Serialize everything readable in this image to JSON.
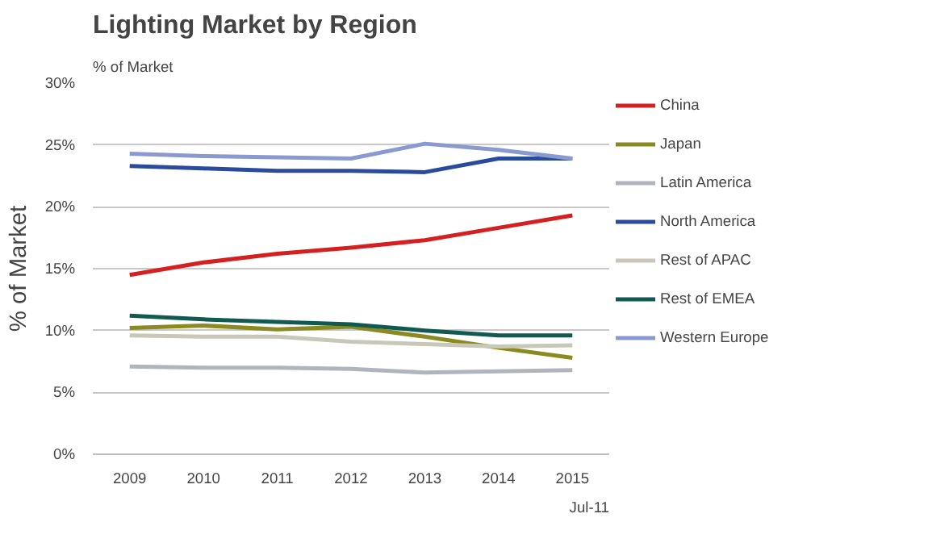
{
  "chart_data": {
    "type": "line",
    "title": "Lighting Market by Region",
    "subtitle": "% of Market",
    "ylabel": "% of Market",
    "categories": [
      "2009",
      "2010",
      "2011",
      "2012",
      "2013",
      "2014",
      "2015"
    ],
    "series": [
      {
        "name": "China",
        "color": "#d42020",
        "values": [
          14.5,
          15.5,
          16.2,
          16.7,
          17.3,
          18.3,
          19.3
        ]
      },
      {
        "name": "Japan",
        "color": "#8a8a20",
        "values": [
          10.2,
          10.4,
          10.1,
          10.3,
          9.5,
          8.6,
          7.8
        ]
      },
      {
        "name": "Latin America",
        "color": "#b0b4bc",
        "values": [
          7.1,
          7.0,
          7.0,
          6.9,
          6.6,
          6.7,
          6.8
        ]
      },
      {
        "name": "North America",
        "color": "#2a4a9c",
        "values": [
          23.3,
          23.1,
          22.9,
          22.9,
          22.8,
          23.9,
          23.9
        ]
      },
      {
        "name": "Rest of APAC",
        "color": "#c8c8b8",
        "values": [
          9.6,
          9.5,
          9.5,
          9.1,
          8.9,
          8.7,
          8.8
        ]
      },
      {
        "name": "Rest of EMEA",
        "color": "#105a50",
        "values": [
          11.2,
          10.9,
          10.7,
          10.5,
          10.0,
          9.6,
          9.6
        ]
      },
      {
        "name": "Western Europe",
        "color": "#8a9ad0",
        "values": [
          24.3,
          24.1,
          24.0,
          23.9,
          25.1,
          24.6,
          23.9
        ]
      }
    ],
    "ylim": [
      0,
      30
    ],
    "yticks": [
      {
        "value": 0,
        "label": "0%"
      },
      {
        "value": 5,
        "label": "5%"
      },
      {
        "value": 10,
        "label": "10%"
      },
      {
        "value": 15,
        "label": "15%"
      },
      {
        "value": 20,
        "label": "20%"
      },
      {
        "value": 25,
        "label": "25%"
      },
      {
        "value": 30,
        "label": "30%"
      }
    ],
    "grid": "y",
    "legend": "right",
    "line_style": "solid",
    "marker": "none",
    "annotations": [
      "Jul-11"
    ]
  }
}
